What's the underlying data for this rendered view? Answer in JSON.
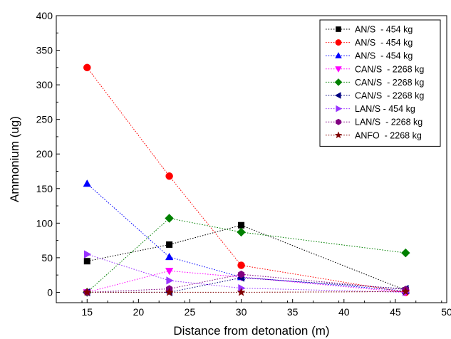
{
  "chart_data": {
    "type": "line",
    "xlabel": "Distance from detonation (m)",
    "ylabel": "Ammonium (ug)",
    "xlim": [
      12,
      50
    ],
    "ylim": [
      -15,
      400
    ],
    "x_ticks": [
      15,
      20,
      25,
      30,
      35,
      40,
      45,
      50
    ],
    "y_ticks": [
      0,
      50,
      100,
      150,
      200,
      250,
      300,
      350,
      400
    ],
    "grid": false,
    "legend_position": "top-right",
    "series": [
      {
        "name": "AN/S  - 454 kg",
        "color": "#000000",
        "marker": "square",
        "points": [
          {
            "x": 15,
            "y": 45
          },
          {
            "x": 23,
            "y": 69
          },
          {
            "x": 30,
            "y": 97
          },
          {
            "x": 46,
            "y": 3
          }
        ]
      },
      {
        "name": "AN/S  - 454 kg",
        "color": "#ff0000",
        "marker": "circle",
        "points": [
          {
            "x": 15,
            "y": 325
          },
          {
            "x": 23,
            "y": 168
          },
          {
            "x": 30,
            "y": 39
          },
          {
            "x": 46,
            "y": 0
          }
        ]
      },
      {
        "name": "AN/S  - 454 kg",
        "color": "#0000ff",
        "marker": "triangle-up",
        "points": [
          {
            "x": 15,
            "y": 157
          },
          {
            "x": 23,
            "y": 51
          },
          {
            "x": 30,
            "y": 22
          },
          {
            "x": 46,
            "y": 2
          }
        ]
      },
      {
        "name": "CAN/S  - 2268 kg",
        "color": "#ff00ff",
        "marker": "triangle-down",
        "points": [
          {
            "x": 15,
            "y": 0
          },
          {
            "x": 23,
            "y": 31
          },
          {
            "x": 30,
            "y": 22
          },
          {
            "x": 46,
            "y": 0
          }
        ]
      },
      {
        "name": "CAN/S  - 2268 kg",
        "color": "#008000",
        "marker": "diamond",
        "points": [
          {
            "x": 15,
            "y": 0
          },
          {
            "x": 23,
            "y": 107
          },
          {
            "x": 30,
            "y": 87
          },
          {
            "x": 46,
            "y": 57
          }
        ]
      },
      {
        "name": "CAN/S  - 2268 kg",
        "color": "#000080",
        "marker": "triangle-left",
        "points": [
          {
            "x": 15,
            "y": 0
          },
          {
            "x": 23,
            "y": 0
          },
          {
            "x": 30,
            "y": 21
          },
          {
            "x": 46,
            "y": 5
          }
        ]
      },
      {
        "name": "LAN/S - 454 kg",
        "color": "#9933ff",
        "marker": "triangle-right",
        "points": [
          {
            "x": 15,
            "y": 55
          },
          {
            "x": 23,
            "y": 17
          },
          {
            "x": 30,
            "y": 6
          },
          {
            "x": 46,
            "y": 0
          }
        ]
      },
      {
        "name": "LAN/S  - 2268 kg",
        "color": "#800080",
        "marker": "hexagon",
        "points": [
          {
            "x": 15,
            "y": 0
          },
          {
            "x": 23,
            "y": 5
          },
          {
            "x": 30,
            "y": 26
          },
          {
            "x": 46,
            "y": 4
          }
        ]
      },
      {
        "name": "ANFO  - 2268 kg",
        "color": "#800000",
        "marker": "star",
        "points": [
          {
            "x": 15,
            "y": 0
          },
          {
            "x": 23,
            "y": 0
          },
          {
            "x": 30,
            "y": 0
          },
          {
            "x": 46,
            "y": 1
          }
        ]
      }
    ]
  }
}
